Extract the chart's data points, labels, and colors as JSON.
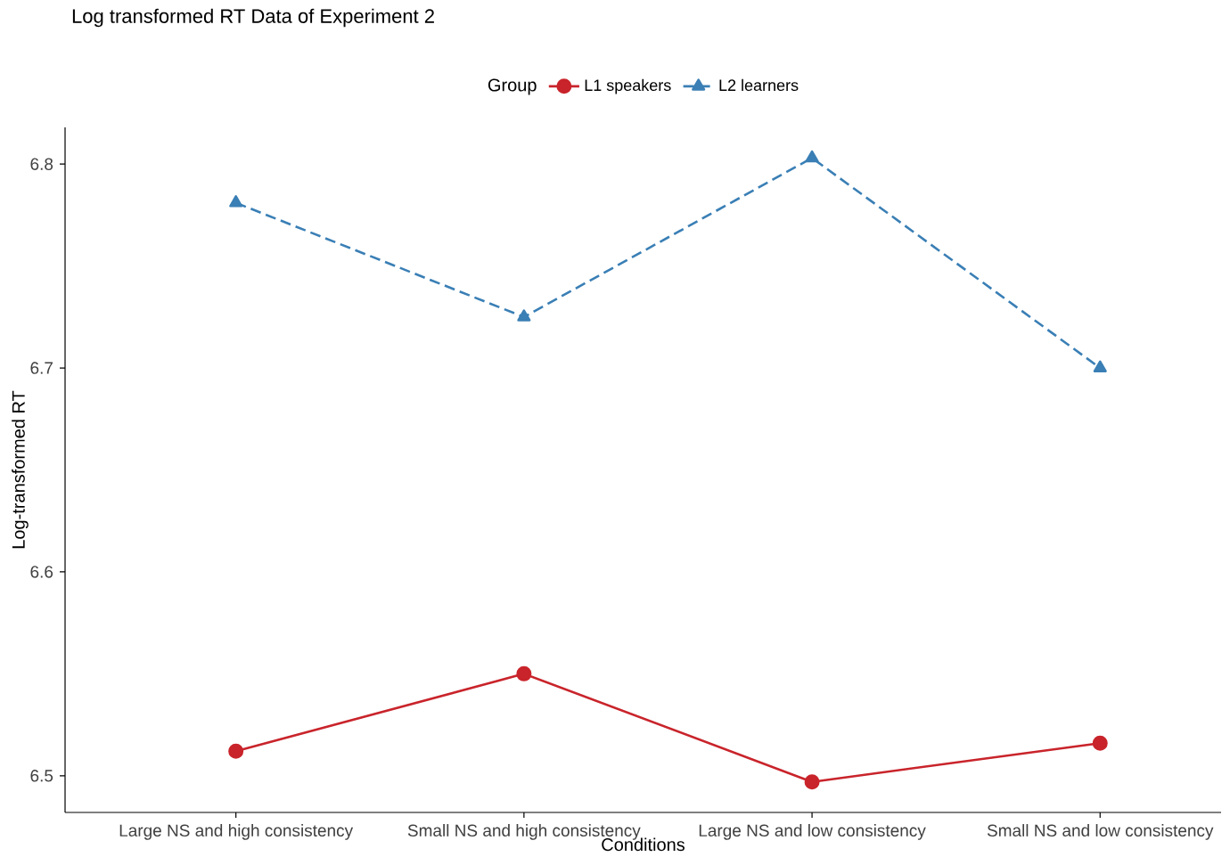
{
  "chart_data": {
    "type": "line",
    "title": "Log transformed RT Data of Experiment 2",
    "xlabel": "Conditions",
    "ylabel": "Log-transformed RT",
    "legend_title": "Group",
    "legend": "top",
    "categories": [
      "Large NS and high consistency",
      "Small NS and high consistency",
      "Large NS and low consistency",
      "Small NS and low consistency"
    ],
    "series": [
      {
        "name": "L1 speakers",
        "color": "#c9242b",
        "marker": "circle",
        "line_style": "solid",
        "values": [
          6.512,
          6.55,
          6.497,
          6.516
        ]
      },
      {
        "name": "L2 learners",
        "color": "#3a7fb5",
        "marker": "triangle",
        "line_style": "dashed",
        "values": [
          6.781,
          6.725,
          6.803,
          6.7
        ]
      }
    ],
    "ylim": [
      6.482,
      6.818
    ],
    "yticks": [
      6.5,
      6.6,
      6.7,
      6.8
    ],
    "grid": false
  }
}
